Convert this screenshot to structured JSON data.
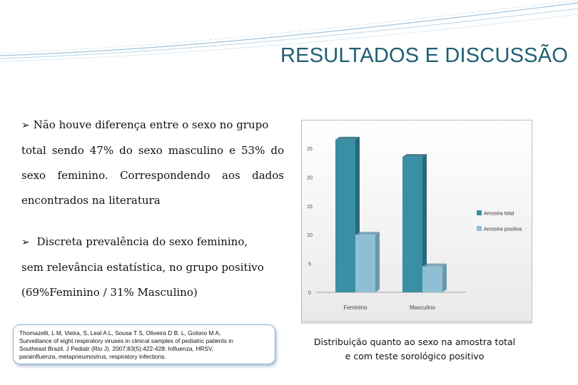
{
  "slide": {
    "title": "RESULTADOS E DISCUSSÃO",
    "bullet1": {
      "lines": [
        "Não houve diferença entre o sexo no grupo",
        "total sendo 47% do sexo masculino e 53% do",
        "sexo feminino. Correspondendo aos dados",
        "encontrados na literatura"
      ]
    },
    "bullet2": {
      "lines": [
        "Discreta prevalência do sexo feminino,",
        "sem relevância estatística, no grupo positivo",
        "(69%Feminino / 31% Masculino)"
      ]
    },
    "reference": {
      "lines": [
        "Thomazelli, L M, Vieira, S, Leal A L, Sousa T S, Oliveira D B. L, Golono M A,",
        "Surveillance of eight respiratory viruses in clinical samples of pediatric patients in",
        "Southeast Brazil. J Pediatr (Rio J). 2007;83(5):422-428: Influenza, HRSV,",
        "parainfluenza, metapneumovirus, respiratory infections."
      ]
    },
    "caption": {
      "lines": [
        "Distribuição quanto ao sexo na amostra total",
        "e com teste sorológico positivo"
      ]
    },
    "colors": {
      "title": "#1f5f73",
      "series_total": "#3a8fa6",
      "series_positive": "#8fbfd4",
      "deco_lines": "#9fc3dc"
    }
  },
  "chart_data": {
    "type": "bar",
    "categories": [
      "Feminino",
      "Masculino"
    ],
    "series": [
      {
        "name": "Amostra total",
        "values": [
          26.5,
          23.5
        ]
      },
      {
        "name": "Amostra positiva",
        "values": [
          10,
          4.5
        ]
      }
    ],
    "yticks": [
      "0",
      "5",
      "10",
      "15",
      "20",
      "25"
    ],
    "ylim": [
      0,
      25
    ],
    "title": "",
    "xlabel": "",
    "ylabel": "",
    "grid": false,
    "legend": "right"
  }
}
